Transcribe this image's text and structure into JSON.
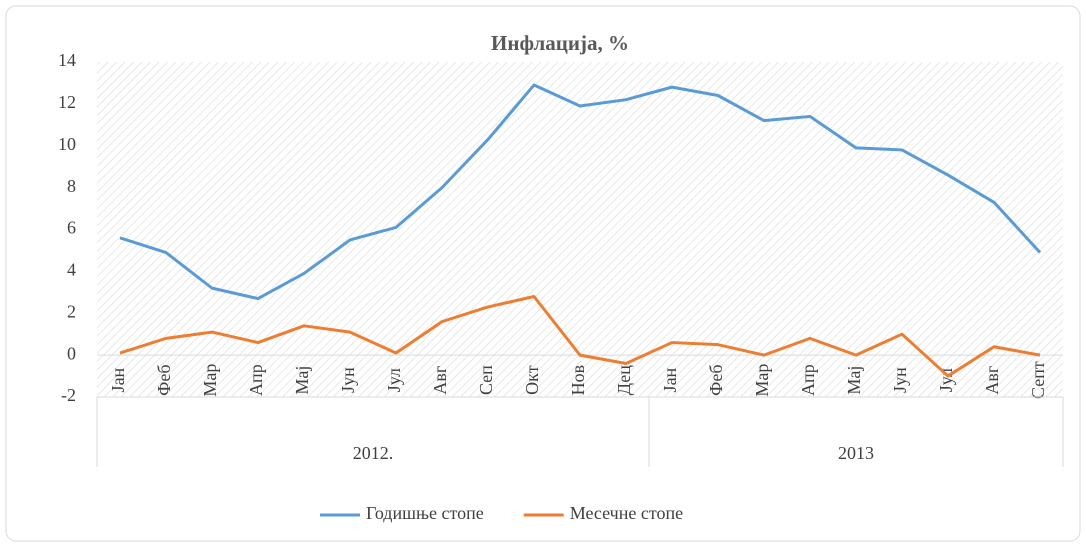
{
  "chart_data": {
    "type": "line",
    "title": "Инфлација,  %",
    "categories": [
      "Јан",
      "Феб",
      "Мар",
      "Апр",
      "Мај",
      "Јун",
      "Јул",
      "Авг",
      "Сеп",
      "Окт",
      "Нов",
      "Дец",
      "Јан",
      "Феб",
      "Мар",
      "Апр",
      "Мај",
      "Јун",
      "Јул",
      "Авг",
      "Септ"
    ],
    "x_groups": [
      "2012.",
      "2013"
    ],
    "series": [
      {
        "name": "Годишње стопе",
        "color": "#5b9bd5",
        "values": [
          5.6,
          4.9,
          3.2,
          2.7,
          3.9,
          5.5,
          6.1,
          8.0,
          10.3,
          12.9,
          11.9,
          12.2,
          12.8,
          12.4,
          11.2,
          11.4,
          9.9,
          9.8,
          8.6,
          7.3,
          4.9
        ]
      },
      {
        "name": "Месечне стопе",
        "color": "#ed7d31",
        "values": [
          0.1,
          0.8,
          1.1,
          0.6,
          1.4,
          1.1,
          0.1,
          1.6,
          2.3,
          2.8,
          0.0,
          -0.4,
          0.6,
          0.5,
          0.0,
          0.8,
          0.0,
          1.0,
          -1.0,
          0.4,
          0.0
        ]
      }
    ],
    "ylim": [
      -2,
      14
    ],
    "yticks": [
      -2,
      0,
      2,
      4,
      6,
      8,
      10,
      12,
      14
    ],
    "legend": "bottom"
  }
}
